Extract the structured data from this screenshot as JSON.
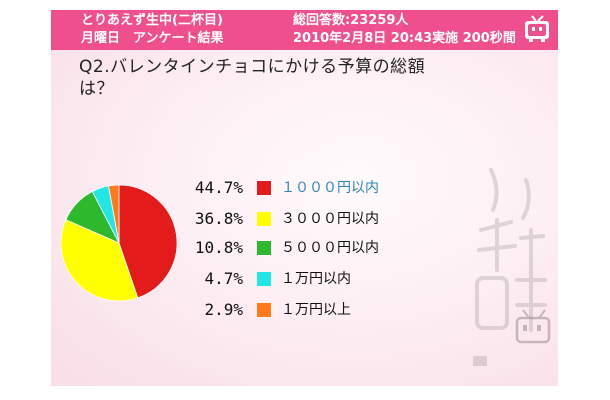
{
  "header": {
    "title_line1": "とりあえず生中(二杯目)",
    "title_line2": "月曜日　アンケート結果",
    "count": "総回答数:23259人",
    "date": "2010年2月8日 20:43実施 200秒間"
  },
  "question": "Q2.バレンタインチョコにかける予算の総額は？",
  "chart_data": {
    "type": "pie",
    "title": "",
    "slices": [
      {
        "label": "１０００円以内",
        "value": 44.7,
        "value_label": "44.7%",
        "color": "#e41b1b"
      },
      {
        "label": "３０００円以内",
        "value": 36.8,
        "value_label": "36.8%",
        "color": "#ffff00"
      },
      {
        "label": "５０００円以内",
        "value": 10.8,
        "value_label": "10.8%",
        "color": "#2eb82e"
      },
      {
        "label": "１万円以内",
        "value": 4.7,
        "value_label": "4.7%",
        "color": "#22e6e6"
      },
      {
        "label": "１万円以上",
        "value": 2.9,
        "value_label": "2.9%",
        "color": "#ff7a1a"
      }
    ],
    "legend_position": "right"
  },
  "icons": {
    "header": "tv-mascot-icon",
    "watermark": "tv-mascot-icon"
  },
  "colors": {
    "header_bg": "#f04f8e",
    "page_bg": "#fdeff4"
  }
}
